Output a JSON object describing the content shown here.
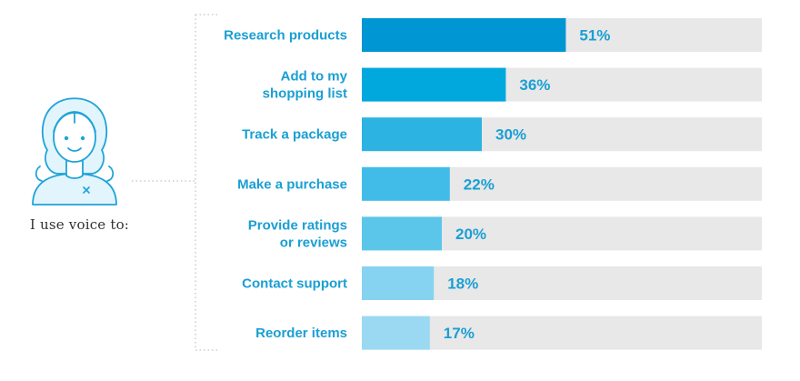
{
  "caption": "I use voice to:",
  "colors": {
    "track": "#e8e8e8",
    "label": "#1a9fd4",
    "outline": "#1ea3d9",
    "face_fill": "#e2f4fc",
    "bars": [
      "#0095d3",
      "#00a8de",
      "#2db3e2",
      "#41bce8",
      "#5cc5ea",
      "#86d3f1",
      "#9bd9f2"
    ]
  },
  "chart_data": {
    "type": "bar",
    "orientation": "horizontal",
    "categories": [
      "Research products",
      "Add to my shopping list",
      "Track a package",
      "Make a purchase",
      "Provide ratings or reviews",
      "Contact support",
      "Reorder items"
    ],
    "category_lines": [
      [
        "Research products"
      ],
      [
        "Add to my",
        "shopping list"
      ],
      [
        "Track a package"
      ],
      [
        "Make a purchase"
      ],
      [
        "Provide ratings",
        "or reviews"
      ],
      [
        "Contact support"
      ],
      [
        "Reorder items"
      ]
    ],
    "values": [
      51,
      36,
      30,
      22,
      20,
      18,
      17
    ],
    "value_labels": [
      "51%",
      "36%",
      "30%",
      "22%",
      "20%",
      "18%",
      "17%"
    ],
    "xlim": [
      0,
      100
    ],
    "grid": false,
    "legend": "none"
  }
}
